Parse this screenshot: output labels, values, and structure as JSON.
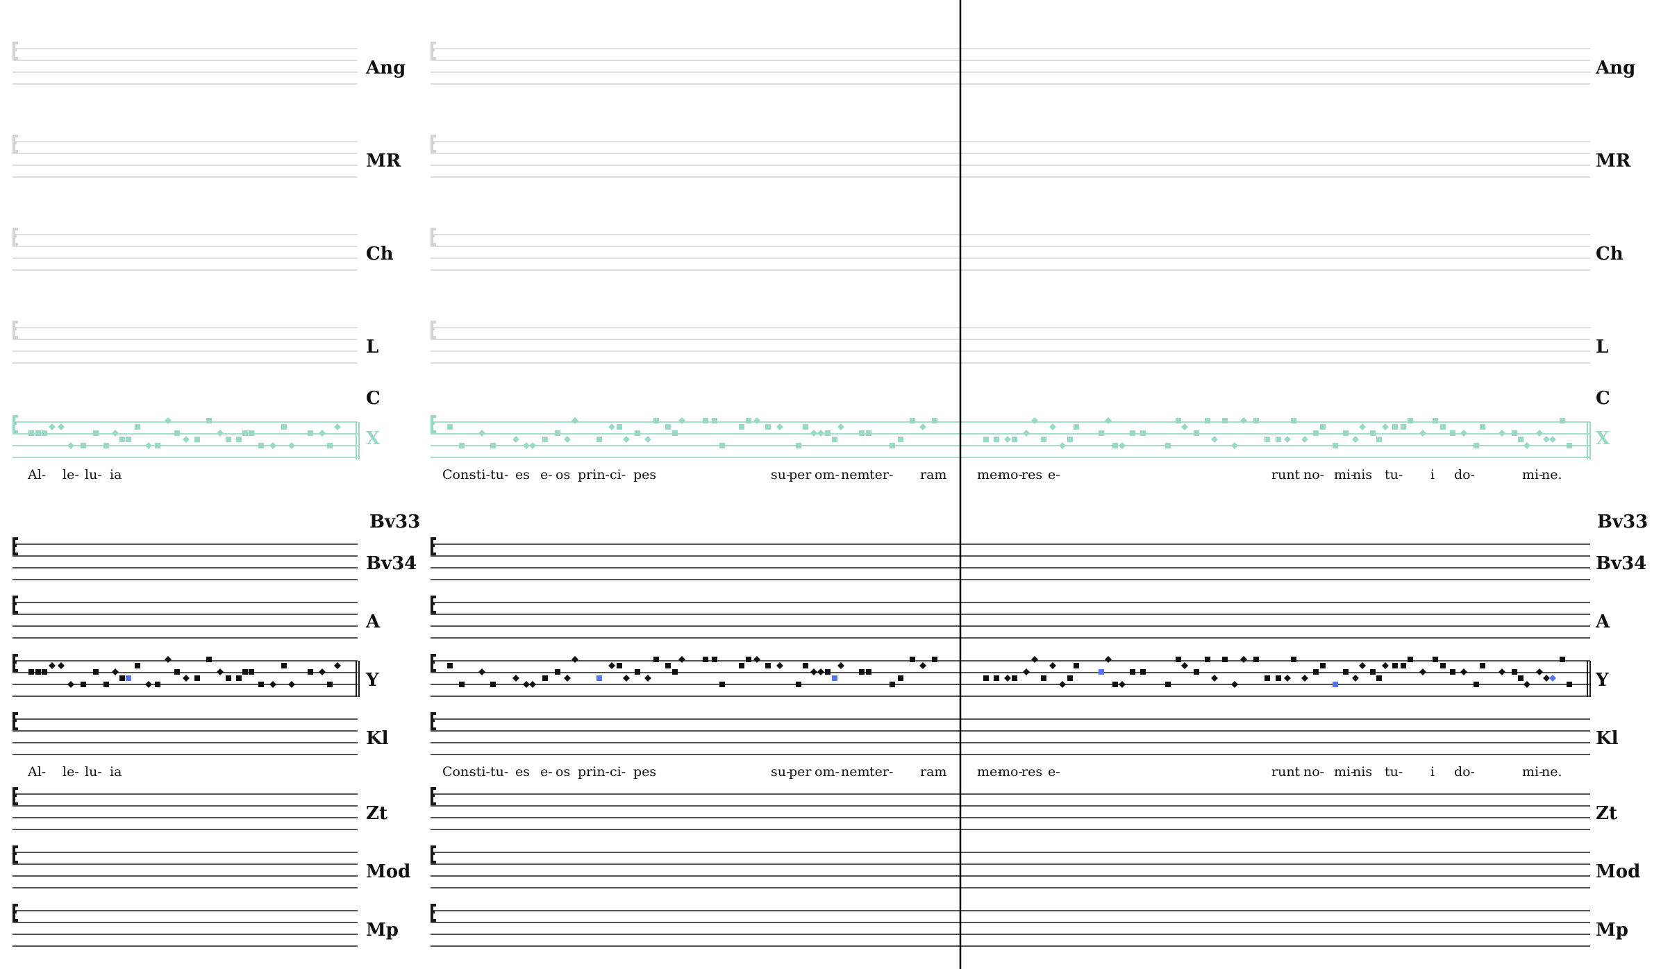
{
  "colors": {
    "staff_black": "#1a1a1a",
    "staff_grey": "#d4d4d4",
    "staff_x": "#9ad8c6",
    "note_black": "#111111",
    "note_x": "#9ad8c6",
    "note_highlight": "#5577ee",
    "divider": "#000000"
  },
  "upper_staves": [
    {
      "label": "Ang",
      "style": "grey"
    },
    {
      "label": "MR",
      "style": "grey"
    },
    {
      "label": "Ch",
      "style": "grey"
    },
    {
      "label": "L",
      "style": "grey"
    },
    {
      "label": "C",
      "style": "label-only"
    },
    {
      "label": "X",
      "style": "x"
    }
  ],
  "lower_staves": [
    {
      "label": "Bv33",
      "style": "label-only"
    },
    {
      "label": "Bv34",
      "style": "black"
    },
    {
      "label": "A",
      "style": "black"
    },
    {
      "label": "Y",
      "style": "black-notes"
    },
    {
      "label": "Kl",
      "style": "black"
    },
    {
      "label": "Zt",
      "style": "black"
    },
    {
      "label": "Mod",
      "style": "black"
    },
    {
      "label": "Mp",
      "style": "black"
    }
  ],
  "lyrics": {
    "system_1": [
      "Al-",
      "le-",
      "lu-",
      "ia"
    ],
    "system_2_left": [
      "Con-",
      "sti-",
      "tu-",
      "es",
      "e-",
      "os",
      "prin-",
      "ci-",
      "pes",
      "su-",
      "per",
      "om-",
      "nem",
      "ter-",
      "ram"
    ],
    "system_2_right": [
      "me-",
      "mo-",
      "res",
      "e-",
      "runt",
      "no-",
      "mi-",
      "nis",
      "tu-",
      "i",
      "do-",
      "mi-",
      "ne."
    ]
  }
}
